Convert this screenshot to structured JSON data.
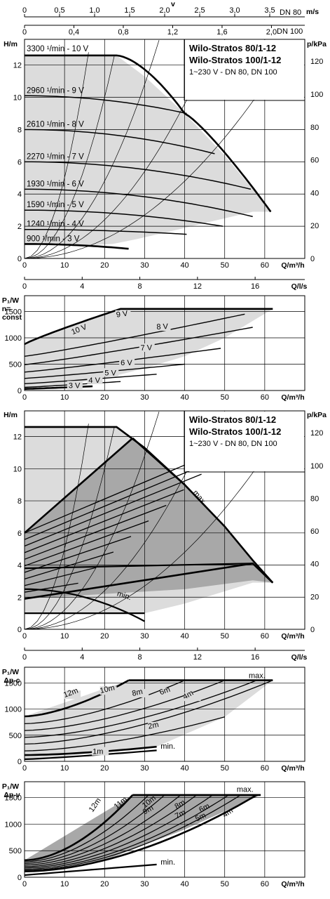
{
  "top_axes": {
    "velocity_label": "v",
    "velocity_unit": "m/s",
    "dn80": {
      "label": "DN 80",
      "ticks": [
        "0",
        "0,5",
        "1,0",
        "1,5",
        "2,0",
        "2,5",
        "3,0",
        "3,5"
      ],
      "range": [
        0,
        4.0
      ]
    },
    "dn100": {
      "label": "DN 100",
      "ticks": [
        "0",
        "0,4",
        "0,8",
        "1,2",
        "1,6",
        "2,0"
      ],
      "range": [
        0,
        2.27
      ]
    }
  },
  "flow_axis": {
    "q_m3h": {
      "unit": "Q/m³/h",
      "ticks": [
        "0",
        "10",
        "20",
        "30",
        "40",
        "50",
        "60"
      ],
      "range": [
        0,
        70
      ]
    },
    "q_ls": {
      "unit": "Q/l/s",
      "ticks": [
        "0",
        "4",
        "8",
        "12",
        "16"
      ]
    }
  },
  "chart_data": [
    {
      "type": "line",
      "title": "Wilo-Stratos 80/1-12",
      "title2": "Wilo-Stratos 100/1-12",
      "subtitle": "1~230 V - DN 80, DN 100",
      "ylabel": "H/m",
      "ylabel_right": "p/kPa",
      "xlabel": "Q/m³/h",
      "xlim": [
        0,
        70
      ],
      "ylim": [
        0,
        13.6
      ],
      "yticks": [
        "0",
        "2",
        "4",
        "6",
        "8",
        "10",
        "12"
      ],
      "yticks_right": [
        "0",
        "20",
        "40",
        "60",
        "80",
        "100",
        "120"
      ],
      "series": [
        {
          "name": "3300 ¹/min - 10 V",
          "H0": 12.6,
          "flat_to": 23,
          "end": [
            40,
            9.0
          ]
        },
        {
          "name": "2960 ¹/min - 9 V",
          "H0": 10.1,
          "end": [
            40.5,
            9.0
          ]
        },
        {
          "name": "2610 ¹/min - 8 V",
          "H0": 8.0,
          "end": [
            47.5,
            6.5
          ]
        },
        {
          "name": "2270 ¹/min - 7 V",
          "H0": 6.0,
          "end": [
            56.5,
            4.3
          ]
        },
        {
          "name": "1930 ¹/min - 6 V",
          "H0": 4.3,
          "end": [
            57,
            2.6
          ]
        },
        {
          "name": "1590 ¹/min - 5 V",
          "H0": 3.0,
          "end": [
            49.5,
            2.0
          ]
        },
        {
          "name": "1240 ¹/min - 4 V",
          "H0": 1.8,
          "end": [
            40.5,
            1.5
          ]
        },
        {
          "name": "900 ¹/min - 3 V",
          "H0": 0.9,
          "end": [
            26,
            0.6
          ]
        }
      ]
    },
    {
      "type": "line",
      "ylabel": "P₁/W",
      "ylabel2": "n=",
      "ylabel3": "const",
      "xlabel": "Q/m³/h",
      "xlim": [
        0,
        70
      ],
      "ylim": [
        0,
        1800
      ],
      "yticks": [
        "0",
        "500",
        "1000",
        "1500"
      ],
      "series": [
        {
          "name": "10 V",
          "P0": 880,
          "Pmax": 1550,
          "x_max": 24,
          "end": 62
        },
        {
          "name": "9 V",
          "P0": 650,
          "end": [
            55,
            1450
          ]
        },
        {
          "name": "8 V",
          "P0": 490,
          "end": [
            57,
            1200
          ]
        },
        {
          "name": "7 V",
          "P0": 350,
          "end": [
            49,
            800
          ]
        },
        {
          "name": "6 V",
          "P0": 230,
          "end": [
            40,
            500
          ]
        },
        {
          "name": "5 V",
          "P0": 130,
          "end": [
            33,
            310
          ]
        },
        {
          "name": "4 V",
          "P0": 60,
          "end": [
            24,
            170
          ]
        },
        {
          "name": "3 V",
          "P0": 30,
          "end": [
            17,
            80
          ]
        }
      ]
    },
    {
      "type": "area",
      "title": "Wilo-Stratos 80/1-12",
      "title2": "Wilo-Stratos 100/1-12",
      "subtitle": "1~230 V - DN 80, DN 100",
      "ylabel": "H/m",
      "ylabel_right": "p/kPa",
      "xlabel": "Q/m³/h",
      "xlim": [
        0,
        70
      ],
      "ylim": [
        0,
        13.6
      ],
      "yticks": [
        "0",
        "2",
        "4",
        "6",
        "8",
        "10",
        "12"
      ],
      "yticks_right": [
        "0",
        "20",
        "40",
        "60",
        "80",
        "100",
        "120"
      ],
      "control_lines": [
        1,
        2,
        3,
        4,
        5,
        6,
        7,
        8,
        9,
        10,
        11,
        12
      ],
      "labels": {
        "max": "max.",
        "min": "min."
      }
    },
    {
      "type": "line",
      "ylabel": "P₁/W",
      "ylabel2": "Δp-c",
      "xlabel": "Q/m³/h",
      "xlim": [
        0,
        70
      ],
      "ylim": [
        0,
        1800
      ],
      "yticks": [
        "0",
        "500",
        "1000",
        "1500"
      ],
      "series": [
        {
          "name": "12m",
          "P0": 860,
          "end": [
            26,
            1550
          ]
        },
        {
          "name": "10m",
          "P0": 720,
          "end": [
            40,
            1550
          ]
        },
        {
          "name": "8m",
          "P0": 590,
          "end": [
            50,
            1550
          ]
        },
        {
          "name": "6m",
          "P0": 460,
          "end": [
            58,
            1550
          ]
        },
        {
          "name": "4m",
          "P0": 330,
          "end": [
            62,
            1550
          ]
        },
        {
          "name": "2m",
          "P0": 200,
          "end": [
            50,
            850
          ]
        },
        {
          "name": "1m",
          "P0": 120,
          "end": [
            33,
            280
          ]
        }
      ],
      "labels": {
        "max": "max.",
        "min": "min."
      }
    },
    {
      "type": "line",
      "ylabel": "P₁/W",
      "ylabel2": "Δp-v",
      "xlabel": "Q/m³/h",
      "xlim": [
        0,
        70
      ],
      "ylim": [
        0,
        1800
      ],
      "yticks": [
        "0",
        "500",
        "1000",
        "1500"
      ],
      "series": [
        {
          "name": "12m",
          "P0": 320,
          "end": [
            27,
            1550
          ]
        },
        {
          "name": "11m",
          "P0": 290,
          "end": [
            31,
            1550
          ]
        },
        {
          "name": "10m",
          "P0": 260,
          "end": [
            35,
            1550
          ]
        },
        {
          "name": "9m",
          "P0": 230,
          "end": [
            39,
            1550
          ]
        },
        {
          "name": "8m",
          "P0": 200,
          "end": [
            43,
            1550
          ]
        },
        {
          "name": "7m",
          "P0": 175,
          "end": [
            47,
            1550
          ]
        },
        {
          "name": "6m",
          "P0": 150,
          "end": [
            51,
            1550
          ]
        },
        {
          "name": "5m",
          "P0": 130,
          "end": [
            54,
            1550
          ]
        },
        {
          "name": "4m",
          "P0": 110,
          "end": [
            58,
            1550
          ]
        }
      ],
      "labels": {
        "max": "max.",
        "min": "min."
      }
    }
  ]
}
